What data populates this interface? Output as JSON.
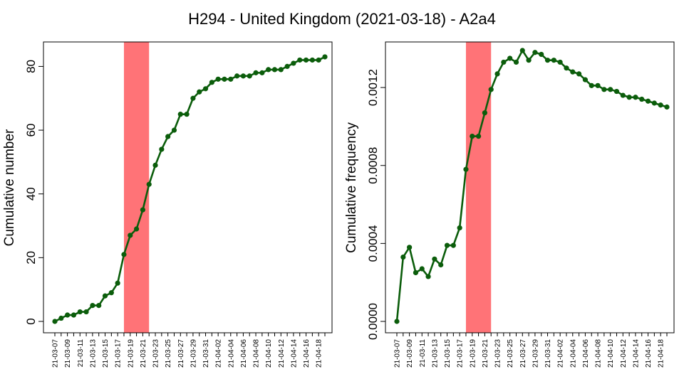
{
  "title": "H294 - United Kingdom (2021-03-18) - A2a4",
  "colors": {
    "line": "#0b5d0b",
    "highlight": "#ff7377"
  },
  "x_labels": [
    "21-03-07",
    "21-03-09",
    "21-03-11",
    "21-03-13",
    "21-03-15",
    "21-03-17",
    "21-03-19",
    "21-03-21",
    "21-03-23",
    "21-03-25",
    "21-03-27",
    "21-03-29",
    "21-03-31",
    "21-04-02",
    "21-04-04",
    "21-04-06",
    "21-04-08",
    "21-04-10",
    "21-04-12",
    "21-04-14",
    "21-04-16",
    "21-04-18"
  ],
  "chart_data": [
    {
      "type": "line",
      "ylabel": "Cumulative number",
      "ylim": [
        0,
        85
      ],
      "yticks": [
        "0",
        "20",
        "40",
        "60",
        "80"
      ],
      "highlight_range": [
        "2021-03-18",
        "2021-03-22"
      ],
      "x": [
        "2021-03-07",
        "2021-03-08",
        "2021-03-09",
        "2021-03-10",
        "2021-03-11",
        "2021-03-12",
        "2021-03-13",
        "2021-03-14",
        "2021-03-15",
        "2021-03-16",
        "2021-03-17",
        "2021-03-18",
        "2021-03-19",
        "2021-03-20",
        "2021-03-21",
        "2021-03-22",
        "2021-03-23",
        "2021-03-24",
        "2021-03-25",
        "2021-03-26",
        "2021-03-27",
        "2021-03-28",
        "2021-03-29",
        "2021-03-30",
        "2021-03-31",
        "2021-04-01",
        "2021-04-02",
        "2021-04-03",
        "2021-04-04",
        "2021-04-05",
        "2021-04-06",
        "2021-04-07",
        "2021-04-08",
        "2021-04-09",
        "2021-04-10",
        "2021-04-11",
        "2021-04-12",
        "2021-04-13",
        "2021-04-14",
        "2021-04-15",
        "2021-04-16",
        "2021-04-17",
        "2021-04-18",
        "2021-04-19"
      ],
      "values": [
        0,
        1,
        2,
        2,
        3,
        3,
        5,
        5,
        8,
        9,
        12,
        21,
        27,
        29,
        35,
        43,
        49,
        54,
        58,
        60,
        65,
        65,
        70,
        72,
        73,
        75,
        76,
        76,
        76,
        77,
        77,
        77,
        78,
        78,
        79,
        79,
        79,
        80,
        81,
        82,
        82,
        82,
        82,
        83
      ]
    },
    {
      "type": "line",
      "ylabel": "Cumulative frequency",
      "ylim": [
        0,
        0.00139
      ],
      "yticks": [
        "0.0000",
        "0.0004",
        "0.0008",
        "0.0012"
      ],
      "highlight_range": [
        "2021-03-18",
        "2021-03-22"
      ],
      "x": [
        "2021-03-07",
        "2021-03-08",
        "2021-03-09",
        "2021-03-10",
        "2021-03-11",
        "2021-03-12",
        "2021-03-13",
        "2021-03-14",
        "2021-03-15",
        "2021-03-16",
        "2021-03-17",
        "2021-03-18",
        "2021-03-19",
        "2021-03-20",
        "2021-03-21",
        "2021-03-22",
        "2021-03-23",
        "2021-03-24",
        "2021-03-25",
        "2021-03-26",
        "2021-03-27",
        "2021-03-28",
        "2021-03-29",
        "2021-03-30",
        "2021-03-31",
        "2021-04-01",
        "2021-04-02",
        "2021-04-03",
        "2021-04-04",
        "2021-04-05",
        "2021-04-06",
        "2021-04-07",
        "2021-04-08",
        "2021-04-09",
        "2021-04-10",
        "2021-04-11",
        "2021-04-12",
        "2021-04-13",
        "2021-04-14",
        "2021-04-15",
        "2021-04-16",
        "2021-04-17",
        "2021-04-18",
        "2021-04-19"
      ],
      "values": [
        0.0,
        0.00033,
        0.00038,
        0.00025,
        0.00027,
        0.00023,
        0.00032,
        0.00029,
        0.00039,
        0.00039,
        0.00048,
        0.00078,
        0.00095,
        0.00095,
        0.00107,
        0.00119,
        0.00127,
        0.00133,
        0.00135,
        0.00133,
        0.00139,
        0.00134,
        0.00138,
        0.00137,
        0.00134,
        0.00134,
        0.00133,
        0.0013,
        0.00128,
        0.00127,
        0.00124,
        0.00121,
        0.00121,
        0.00119,
        0.00119,
        0.00118,
        0.00116,
        0.00115,
        0.00115,
        0.00114,
        0.00113,
        0.00112,
        0.00111,
        0.0011
      ]
    }
  ]
}
